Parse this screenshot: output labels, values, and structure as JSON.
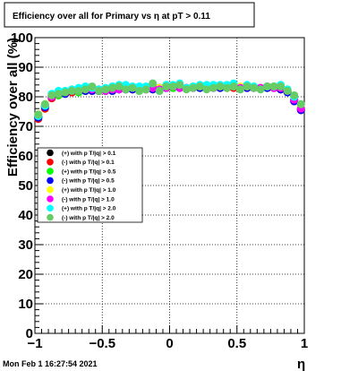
{
  "chart_data": {
    "type": "scatter",
    "title": "Efficiency over all for Primary vs   η at pT > 0.11",
    "xlabel": "η",
    "ylabel": "Efficiency over all (%)",
    "xlim": [
      -1,
      1
    ],
    "ylim": [
      0,
      100
    ],
    "x_ticks": [
      -1,
      -0.5,
      0,
      0.5,
      1
    ],
    "x_tick_labels": [
      "−1",
      "−0.5",
      "0",
      "0.5",
      "1"
    ],
    "y_ticks": [
      0,
      10,
      20,
      30,
      40,
      50,
      60,
      70,
      80,
      90,
      100
    ],
    "y_tick_labels": [
      "0",
      "10",
      "20",
      "30",
      "40",
      "50",
      "60",
      "70",
      "80",
      "90",
      "100"
    ],
    "grid": true,
    "legend_position": "middle-left",
    "x": [
      -0.975,
      -0.925,
      -0.875,
      -0.825,
      -0.775,
      -0.725,
      -0.675,
      -0.625,
      -0.575,
      -0.525,
      -0.475,
      -0.425,
      -0.375,
      -0.325,
      -0.275,
      -0.225,
      -0.175,
      -0.125,
      -0.075,
      -0.025,
      0.025,
      0.075,
      0.125,
      0.175,
      0.225,
      0.275,
      0.325,
      0.375,
      0.425,
      0.475,
      0.525,
      0.575,
      0.625,
      0.675,
      0.725,
      0.775,
      0.825,
      0.875,
      0.925,
      0.975
    ],
    "series": [
      {
        "name": "(+) with p T/|q| > 0.1",
        "color": "#000000",
        "values": [
          73,
          77,
          80,
          81,
          81.5,
          82,
          82,
          82,
          82.5,
          82,
          82,
          82.5,
          82.5,
          82.5,
          82.5,
          82.5,
          82.5,
          83,
          83,
          83,
          83,
          83,
          83,
          83,
          83,
          83,
          83,
          83,
          83.5,
          83.5,
          83,
          83,
          83,
          83,
          83,
          83,
          82.5,
          82,
          79,
          76
        ]
      },
      {
        "name": "(-) with p T/|q| > 0.1",
        "color": "#ff0000",
        "values": [
          72.5,
          76,
          79.5,
          80.5,
          81,
          81.5,
          82,
          82,
          82,
          82,
          82,
          82,
          82.5,
          82.5,
          82.5,
          82.5,
          82.5,
          82.5,
          83,
          83,
          83,
          83,
          83,
          83,
          83,
          83,
          83,
          83,
          83,
          83,
          83,
          83,
          83,
          83,
          83,
          83,
          82.5,
          82,
          78.5,
          75.5
        ]
      },
      {
        "name": "(+) with p T/|q| > 0.5",
        "color": "#00ff00",
        "values": [
          73,
          77,
          80,
          80.5,
          81,
          82,
          81.5,
          82,
          82.5,
          82,
          82,
          82,
          82.5,
          82.5,
          83,
          82,
          82.5,
          83,
          82.5,
          83,
          83,
          83,
          83,
          83.5,
          83,
          83,
          83.5,
          83,
          83,
          83.5,
          83,
          83.5,
          83,
          83,
          83,
          83.5,
          83,
          82,
          79,
          76
        ]
      },
      {
        "name": "(-) with p T/|q| > 0.5",
        "color": "#0000ff",
        "values": [
          73,
          76.5,
          80,
          81,
          81,
          82,
          82,
          82,
          82,
          82,
          82.5,
          82,
          82.5,
          82.5,
          82.5,
          82.5,
          83,
          82.5,
          83,
          83,
          83.5,
          83,
          83,
          83,
          83,
          83.5,
          83,
          83,
          83.5,
          83.5,
          83,
          83,
          83,
          83,
          83,
          83,
          82.5,
          81.5,
          78.5,
          75.5
        ]
      },
      {
        "name": "(+) with p T/|q| > 1.0",
        "color": "#ffff00",
        "values": [
          74,
          77.5,
          80.5,
          81,
          81.5,
          82,
          82.5,
          82.5,
          83,
          82.5,
          82.5,
          82.5,
          83,
          83,
          83,
          83,
          83,
          83.5,
          83,
          83.5,
          83.5,
          83.5,
          83,
          83.5,
          83.5,
          83.5,
          83.5,
          83.5,
          83.5,
          83.5,
          83.5,
          83.5,
          83.5,
          83,
          83.5,
          83.5,
          83,
          82.5,
          80,
          77
        ]
      },
      {
        "name": "(-) with p T/|q| > 1.0",
        "color": "#ff00ff",
        "values": [
          73.5,
          77,
          80,
          81,
          81.5,
          82,
          82,
          82.5,
          82.5,
          82.5,
          82,
          82.5,
          82.5,
          83,
          83,
          82.5,
          82.5,
          83,
          82.5,
          83,
          83.5,
          83,
          83,
          83,
          83.5,
          83,
          83,
          83.5,
          83.5,
          83.5,
          83,
          83.5,
          83,
          83,
          83.5,
          83,
          83,
          82,
          79,
          76
        ]
      },
      {
        "name": "(+) with p T/|q| > 2.0",
        "color": "#00ffff",
        "values": [
          73.5,
          77,
          81,
          82,
          82,
          82.5,
          83,
          83.5,
          83,
          82.5,
          83,
          83.5,
          84,
          84,
          83.5,
          83.5,
          83.5,
          84.5,
          82,
          84,
          84,
          84.5,
          83,
          83.5,
          84,
          84,
          84,
          84,
          84,
          84.5,
          82.5,
          84,
          83.5,
          82.5,
          83.5,
          83.5,
          84,
          82.5,
          80,
          77.5
        ]
      },
      {
        "name": "(-) with p T/|q| > 2.0",
        "color": "#66cc66",
        "values": [
          74,
          77.5,
          80.5,
          81,
          81.5,
          82,
          82,
          82.5,
          83.5,
          82,
          82.5,
          83,
          83.5,
          82.5,
          83,
          82,
          82.5,
          84.5,
          82,
          83.5,
          83.5,
          84,
          82.5,
          83,
          83.5,
          82.5,
          83,
          83.5,
          83,
          83.5,
          82.5,
          83.5,
          83,
          82.5,
          83.5,
          83.5,
          83.5,
          82,
          80.5,
          77.5
        ]
      }
    ]
  },
  "footer": {
    "timestamp": "Mon Feb  1 16:27:54 2021"
  }
}
